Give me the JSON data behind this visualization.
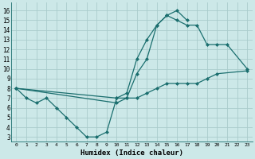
{
  "xlabel": "Humidex (Indice chaleur)",
  "background_color": "#cce8e8",
  "grid_color": "#aacccc",
  "line_color": "#1a6e6e",
  "xlim": [
    -0.5,
    23.5
  ],
  "ylim": [
    2.5,
    16.8
  ],
  "xticks": [
    0,
    1,
    2,
    3,
    4,
    5,
    6,
    7,
    8,
    9,
    10,
    11,
    12,
    13,
    14,
    15,
    16,
    17,
    18,
    19,
    20,
    21,
    22,
    23
  ],
  "yticks": [
    3,
    4,
    5,
    6,
    7,
    8,
    9,
    10,
    11,
    12,
    13,
    14,
    15,
    16
  ],
  "series": [
    {
      "x": [
        0,
        1,
        2,
        3,
        4,
        5,
        6,
        7,
        8,
        9,
        10,
        11,
        12,
        13,
        14,
        15,
        16,
        17
      ],
      "y": [
        8,
        7,
        6.5,
        7,
        6,
        5.0,
        4.0,
        3.0,
        3.0,
        3.5,
        7.0,
        7.0,
        9.5,
        11.0,
        14.5,
        15.5,
        16.0,
        15.0
      ]
    },
    {
      "x": [
        0,
        10,
        11,
        12,
        13,
        14,
        15,
        16,
        17,
        18,
        19,
        20,
        21,
        23
      ],
      "y": [
        8,
        7.0,
        7.5,
        11.0,
        13.0,
        14.5,
        15.5,
        15.0,
        14.5,
        14.5,
        12.5,
        12.5,
        12.5,
        10.0
      ]
    },
    {
      "x": [
        0,
        10,
        11,
        12,
        13,
        14,
        15,
        16,
        17,
        18,
        19,
        20,
        23
      ],
      "y": [
        8,
        6.5,
        7.0,
        7.0,
        7.5,
        8.0,
        8.5,
        8.5,
        8.5,
        8.5,
        9.0,
        9.5,
        9.8
      ]
    }
  ]
}
